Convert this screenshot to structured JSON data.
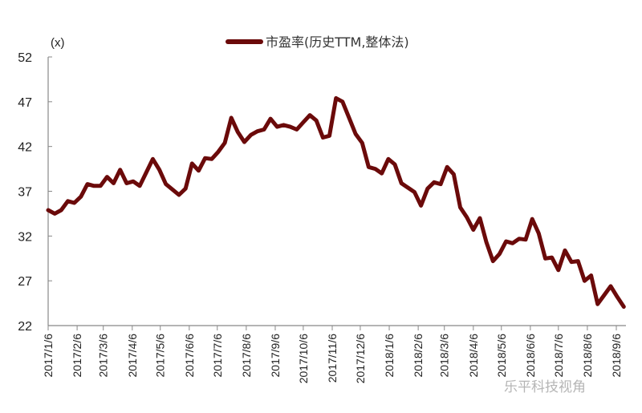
{
  "chart_data": {
    "type": "line",
    "unit_label": "(x)",
    "legend": {
      "placement": "top-center",
      "entries": [
        "市盈率(历史TTM,整体法)"
      ]
    },
    "ylim": [
      22,
      52
    ],
    "yticks": [
      22,
      27,
      32,
      37,
      42,
      47,
      52
    ],
    "xticks": [
      "2017/1/6",
      "2017/2/6",
      "2017/3/6",
      "2017/4/6",
      "2017/5/6",
      "2017/6/6",
      "2017/7/6",
      "2017/8/6",
      "2017/9/6",
      "2017/10/6",
      "2017/11/6",
      "2017/12/6",
      "2018/1/6",
      "2018/2/6",
      "2018/3/6",
      "2018/4/6",
      "2018/5/6",
      "2018/6/6",
      "2018/7/6",
      "2018/8/6",
      "2018/9/6"
    ],
    "grid": false,
    "series": [
      {
        "name": "市盈率(历史TTM,整体法)",
        "color": "#6b0a0a",
        "x": [
          "2017/1/6",
          "2017/1/13",
          "2017/1/20",
          "2017/1/27",
          "2017/2/3",
          "2017/2/10",
          "2017/2/17",
          "2017/2/24",
          "2017/3/3",
          "2017/3/10",
          "2017/3/17",
          "2017/3/24",
          "2017/3/31",
          "2017/4/7",
          "2017/4/14",
          "2017/4/21",
          "2017/4/28",
          "2017/5/5",
          "2017/5/12",
          "2017/5/19",
          "2017/5/26",
          "2017/6/2",
          "2017/6/9",
          "2017/6/16",
          "2017/6/23",
          "2017/6/30",
          "2017/7/7",
          "2017/7/14",
          "2017/7/21",
          "2017/7/28",
          "2017/8/4",
          "2017/8/11",
          "2017/8/18",
          "2017/8/25",
          "2017/9/1",
          "2017/9/8",
          "2017/9/15",
          "2017/9/22",
          "2017/9/29",
          "2017/10/6",
          "2017/10/13",
          "2017/10/20",
          "2017/10/27",
          "2017/11/3",
          "2017/11/10",
          "2017/11/17",
          "2017/11/24",
          "2017/12/1",
          "2017/12/8",
          "2017/12/15",
          "2017/12/22",
          "2017/12/29",
          "2018/1/5",
          "2018/1/12",
          "2018/1/19",
          "2018/1/26",
          "2018/2/2",
          "2018/2/9",
          "2018/2/16",
          "2018/2/23",
          "2018/3/2",
          "2018/3/9",
          "2018/3/16",
          "2018/3/23",
          "2018/3/30",
          "2018/4/6",
          "2018/4/13",
          "2018/4/20",
          "2018/4/27",
          "2018/5/4",
          "2018/5/11",
          "2018/5/18",
          "2018/5/25",
          "2018/6/1",
          "2018/6/8",
          "2018/6/15",
          "2018/6/22",
          "2018/6/29",
          "2018/7/6",
          "2018/7/13",
          "2018/7/20",
          "2018/7/27",
          "2018/8/3",
          "2018/8/10",
          "2018/8/17",
          "2018/8/24",
          "2018/8/31",
          "2018/9/7",
          "2018/9/14"
        ],
        "values": [
          34.9,
          34.5,
          34.9,
          35.9,
          35.7,
          36.4,
          37.8,
          37.6,
          37.6,
          38.6,
          37.9,
          39.4,
          37.9,
          38.1,
          37.6,
          39.1,
          40.6,
          39.4,
          37.8,
          37.2,
          36.6,
          37.3,
          40.1,
          39.3,
          40.7,
          40.6,
          41.4,
          42.4,
          45.2,
          43.6,
          42.5,
          43.3,
          43.7,
          43.9,
          45.1,
          44.2,
          44.4,
          44.2,
          43.9,
          44.7,
          45.5,
          44.9,
          43.0,
          43.2,
          47.4,
          47.0,
          45.2,
          43.4,
          42.4,
          39.7,
          39.5,
          39.0,
          40.6,
          40.0,
          37.9,
          37.4,
          36.9,
          35.4,
          37.3,
          38.0,
          37.8,
          39.7,
          38.9,
          35.2,
          34.1,
          32.7,
          34.0,
          31.3,
          29.2,
          30.0,
          31.4,
          31.2,
          31.7,
          31.6,
          33.9,
          32.3,
          29.5,
          29.6,
          28.2,
          30.4,
          29.1,
          29.2,
          27.0,
          27.6,
          24.4,
          25.4,
          26.4,
          25.2,
          24.1
        ]
      }
    ]
  },
  "watermark": "乐平科技视角"
}
